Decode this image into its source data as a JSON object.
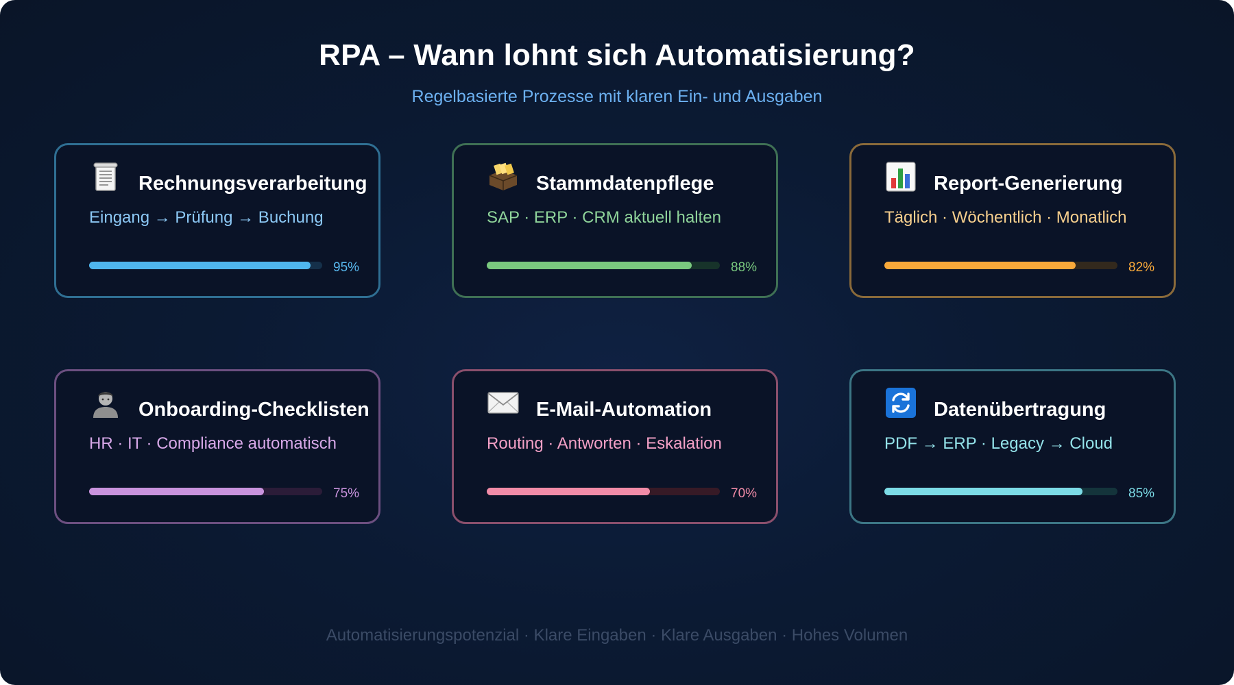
{
  "header": {
    "title": "RPA – Wann lohnt sich Automatisierung?",
    "subtitle": "Regelbasierte Prozesse mit klaren Ein- und Ausgaben"
  },
  "cards": [
    {
      "title": "Rechnungsverarbeitung",
      "description": "Eingang → Prüfung → Buchung",
      "percent_label": "95%",
      "progress": 0.95,
      "icon": "receipt-icon",
      "colors": {
        "border": "#2f6f93",
        "text": "#8cc8f5",
        "fill": "#4fb6ee",
        "track": "#15304a",
        "pct": "#58b8ee"
      }
    },
    {
      "title": "Stammdatenpflege",
      "description": "SAP · ERP · CRM aktuell halten",
      "percent_label": "88%",
      "progress": 0.88,
      "icon": "card-file-box-icon",
      "colors": {
        "border": "#3f7054",
        "text": "#8fd49a",
        "fill": "#7ac97f",
        "track": "#17332a",
        "pct": "#7ac97f"
      }
    },
    {
      "title": "Report-Generierung",
      "description": "Täglich · Wöchentlich · Monatlich",
      "percent_label": "82%",
      "progress": 0.82,
      "icon": "bar-chart-icon",
      "colors": {
        "border": "#8a6a3a",
        "text": "#f7cf8d",
        "fill": "#f9a93a",
        "track": "#33291d",
        "pct": "#f9a93a"
      }
    },
    {
      "title": "Onboarding-Checklisten",
      "description": "HR · IT · Compliance automatisch",
      "percent_label": "75%",
      "progress": 0.75,
      "icon": "person-icon",
      "colors": {
        "border": "#6c4f80",
        "text": "#d7a8e8",
        "fill": "#c993dd",
        "track": "#2b1c38",
        "pct": "#c993dd"
      }
    },
    {
      "title": "E-Mail-Automation",
      "description": "Routing · Antworten · Eskalation",
      "percent_label": "70%",
      "progress": 0.7,
      "icon": "envelope-icon",
      "colors": {
        "border": "#8a4f6c",
        "text": "#f3a0c6",
        "fill": "#f28ca8",
        "track": "#371a26",
        "pct": "#f28ca8"
      }
    },
    {
      "title": "Datenübertragung",
      "description": "PDF → ERP · Legacy → Cloud",
      "percent_label": "85%",
      "progress": 0.85,
      "icon": "refresh-icon",
      "colors": {
        "border": "#3c7685",
        "text": "#94e3ea",
        "fill": "#7cdbe6",
        "track": "#14343b",
        "pct": "#7cdbe6"
      }
    }
  ],
  "footer": {
    "text": "Automatisierungspotenzial · Klare Eingaben · Klare Ausgaben · Hohes Volumen"
  }
}
